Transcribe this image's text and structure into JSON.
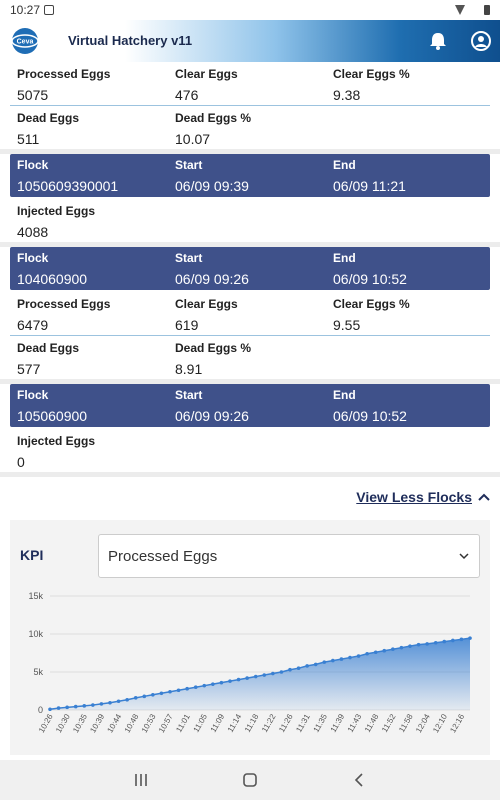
{
  "status_bar": {
    "time": "10:27"
  },
  "header": {
    "logo": "Ceva",
    "title": "Virtual Hatchery v11"
  },
  "flocks": [
    {
      "details": [
        [
          {
            "label": "Processed Eggs",
            "value": 5075
          },
          {
            "label": "Clear Eggs",
            "value": 476
          },
          {
            "label": "Clear Eggs %",
            "value": 9.38
          }
        ],
        [
          {
            "label": "Dead Eggs",
            "value": 511
          },
          {
            "label": "Dead Eggs %",
            "value": 10.07
          }
        ]
      ]
    },
    {
      "header": [
        {
          "label": "Flock",
          "value": "1050609390001"
        },
        {
          "label": "Start",
          "value": "06/09 09:39"
        },
        {
          "label": "End",
          "value": "06/09 11:21"
        }
      ],
      "details": [
        [
          {
            "label": "Injected Eggs",
            "value": 4088
          }
        ]
      ]
    },
    {
      "header": [
        {
          "label": "Flock",
          "value": "104060900"
        },
        {
          "label": "Start",
          "value": "06/09 09:26"
        },
        {
          "label": "End",
          "value": "06/09 10:52"
        }
      ],
      "details": [
        [
          {
            "label": "Processed Eggs",
            "value": 6479
          },
          {
            "label": "Clear Eggs",
            "value": 619
          },
          {
            "label": "Clear Eggs %",
            "value": 9.55
          }
        ],
        [
          {
            "label": "Dead Eggs",
            "value": 577
          },
          {
            "label": "Dead Eggs %",
            "value": 8.91
          }
        ]
      ]
    },
    {
      "header": [
        {
          "label": "Flock",
          "value": "105060900"
        },
        {
          "label": "Start",
          "value": "06/09 09:26"
        },
        {
          "label": "End",
          "value": "06/09 10:52"
        }
      ],
      "details": [
        [
          {
            "label": "Injected Eggs",
            "value": 0
          }
        ]
      ]
    }
  ],
  "view_less": "View Less Flocks",
  "kpi": {
    "label": "KPI",
    "selected": "Processed Eggs"
  },
  "chart_data": {
    "type": "area",
    "color": "#3a80d2",
    "grid": true,
    "categories": [
      "10:26",
      null,
      "10:30",
      null,
      "10:35",
      null,
      "10:39",
      null,
      "10:44",
      null,
      "10:48",
      null,
      "10:53",
      null,
      "10:57",
      null,
      "11:01",
      null,
      "11:05",
      null,
      "11:09",
      null,
      "11:14",
      null,
      "11:18",
      null,
      "11:22",
      null,
      "11:26",
      null,
      "11:31",
      null,
      "11:35",
      null,
      "11:39",
      null,
      "11:43",
      null,
      "11:48",
      null,
      "11:52",
      null,
      "11:58",
      null,
      "12:04",
      null,
      "12:10",
      null,
      "12:16",
      null
    ],
    "values": [
      100,
      250,
      350,
      450,
      550,
      650,
      800,
      950,
      1150,
      1350,
      1600,
      1800,
      2000,
      2200,
      2400,
      2600,
      2800,
      3000,
      3200,
      3400,
      3600,
      3800,
      4000,
      4200,
      4400,
      4600,
      4800,
      5000,
      5300,
      5500,
      5800,
      6000,
      6300,
      6500,
      6700,
      6900,
      7100,
      7400,
      7600,
      7800,
      8000,
      8200,
      8400,
      8600,
      8700,
      8850,
      9000,
      9150,
      9300,
      9450
    ],
    "ylim": [
      0,
      15000
    ],
    "yticks": [
      0,
      {
        "value": 5000,
        "label": "5k"
      },
      {
        "value": 10000,
        "label": "10k"
      },
      {
        "value": 15000,
        "label": "15k"
      }
    ]
  }
}
